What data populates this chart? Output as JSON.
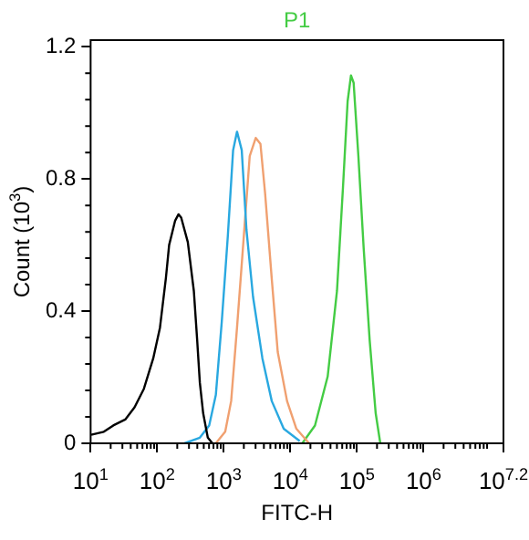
{
  "chart_data": {
    "type": "line",
    "xlabel": "FITC-H",
    "ylabel": "Count (10$^{3}$)",
    "log": "x",
    "legend": "top",
    "grid": false,
    "marker": "none",
    "line_style": "solid",
    "xlim": [
      10,
      15848932
    ],
    "ylim": [
      0,
      1.22
    ],
    "xticks": [
      {
        "value": 10,
        "label": "10$^{1}$"
      },
      {
        "value": 100,
        "label": "10$^{2}$"
      },
      {
        "value": 1000,
        "label": "10$^{3}$"
      },
      {
        "value": 10000,
        "label": "10$^{4}$"
      },
      {
        "value": 100000,
        "label": "10$^{5}$"
      },
      {
        "value": 1000000,
        "label": "10$^{6}$"
      },
      {
        "value": 15848932,
        "label": "10$^{7.2}$"
      }
    ],
    "yticks": [
      0,
      0.4,
      0.8,
      1.2
    ],
    "series": [
      {
        "color": "#000000",
        "x": [
          10.2,
          15.8,
          21.9,
          33.1,
          45.7,
          63.1,
          87.1,
          110,
          135,
          151,
          186,
          209,
          229,
          288,
          355,
          398,
          437,
          490,
          575,
          676
        ],
        "values": [
          0.026,
          0.035,
          0.054,
          0.072,
          0.109,
          0.165,
          0.257,
          0.35,
          0.5,
          0.6,
          0.674,
          0.693,
          0.683,
          0.609,
          0.461,
          0.313,
          0.183,
          0.091,
          0.017,
          0
        ]
      },
      {
        "color": "#29a8e0",
        "x": [
          257,
          437,
          603,
          759,
          933,
          1150,
          1380,
          1580,
          1860,
          2190,
          2750,
          3800,
          5250,
          7940,
          13800
        ],
        "values": [
          0,
          0.017,
          0.054,
          0.146,
          0.369,
          0.628,
          0.887,
          0.943,
          0.887,
          0.646,
          0.443,
          0.257,
          0.128,
          0.044,
          0.007
        ]
      },
      {
        "color": "#f0a070",
        "x": [
          759,
          1050,
          1290,
          1580,
          2000,
          2450,
          3020,
          3550,
          4170,
          5250,
          6460,
          8910,
          12300,
          19100
        ],
        "values": [
          0,
          0.035,
          0.128,
          0.35,
          0.628,
          0.869,
          0.924,
          0.906,
          0.757,
          0.498,
          0.276,
          0.128,
          0.044,
          0
        ]
      },
      {
        "name": "P1",
        "color": "#44cc44",
        "x": [
          15100,
          23400,
          36300,
          50100,
          61700,
          72400,
          81300,
          89100,
          105000,
          126000,
          155000,
          191000,
          224000
        ],
        "values": [
          0,
          0.054,
          0.202,
          0.461,
          0.776,
          1.035,
          1.113,
          1.091,
          0.869,
          0.591,
          0.313,
          0.091,
          0
        ]
      }
    ]
  }
}
